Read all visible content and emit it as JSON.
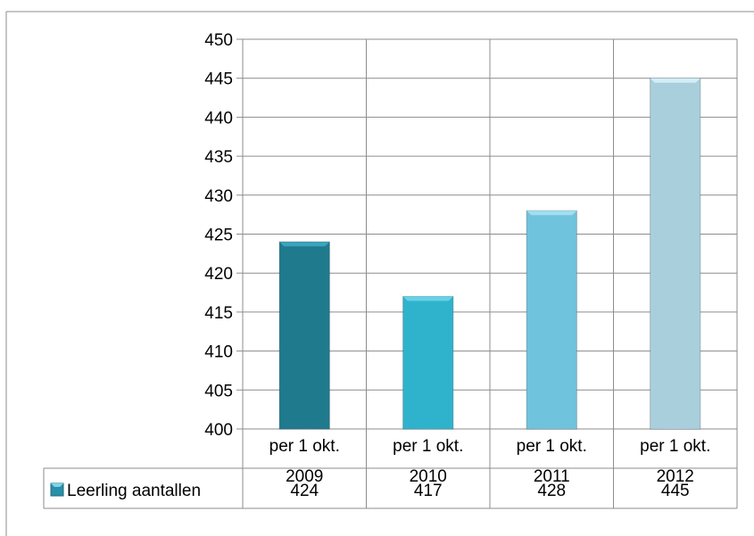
{
  "chart_data": {
    "type": "bar",
    "categories": [
      [
        "per 1 okt.",
        "2009"
      ],
      [
        "per 1 okt.",
        "2010"
      ],
      [
        "per 1 okt.",
        "2011"
      ],
      [
        "per 1 okt.",
        "2012"
      ]
    ],
    "series": [
      {
        "name": "Leerling aantallen",
        "values": [
          424,
          417,
          428,
          445
        ]
      }
    ],
    "ylim": [
      400,
      450
    ],
    "ytick_step": 5,
    "yticks": [
      "400",
      "405",
      "410",
      "415",
      "420",
      "425",
      "430",
      "435",
      "440",
      "445",
      "450"
    ],
    "grid": true,
    "data_table": true,
    "colors": {
      "bars": [
        "#1f7a8e",
        "#2fb3cd",
        "#6fc3dc",
        "#a9cfdd"
      ],
      "bar_tops": [
        "#3aa4bb",
        "#66d2e6",
        "#a2def0",
        "#d1edf6"
      ],
      "legend_key": "#2a8fa8",
      "grid": "#8c8c8c",
      "frame": "#8c8c8c"
    }
  }
}
